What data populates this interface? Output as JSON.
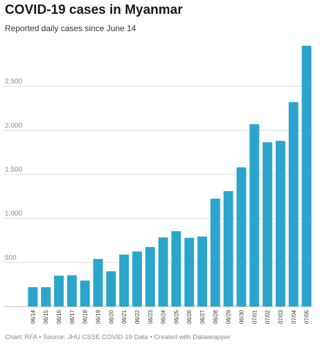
{
  "title": "COVID-19 cases in Myanmar",
  "subtitle": "Reported daily cases since June 14",
  "footer": "Chart: RFA • Source: JHU CSSE COVID-19 Data • Created with Datawrapper",
  "colors": {
    "bar": "#2ba5cc",
    "grid": "#dcdcdc",
    "tick": "#8c8c8c",
    "label": "#333333"
  },
  "chart_data": {
    "type": "bar",
    "title": "COVID-19 cases in Myanmar",
    "subtitle": "Reported daily cases since June 14",
    "xlabel": "",
    "ylabel": "",
    "ylim": [
      0,
      3000
    ],
    "yticks": [
      500,
      1000,
      1500,
      2000,
      2500
    ],
    "ytick_labels": [
      "500",
      "1,000",
      "1,500",
      "2,000",
      "2,500"
    ],
    "grid": true,
    "legend": "none",
    "categories": [
      "06/14",
      "06/15",
      "06/16",
      "06/17",
      "06/18",
      "06/19",
      "06/20",
      "06/21",
      "06/22",
      "06/23",
      "06/24",
      "06/25",
      "06/26",
      "06/27",
      "06/28",
      "06/29",
      "06/30",
      "07/01",
      "07/02",
      "07/03",
      "07/04",
      "07/05"
    ],
    "values": [
      220,
      220,
      350,
      355,
      295,
      540,
      400,
      590,
      625,
      675,
      785,
      855,
      780,
      795,
      1225,
      1310,
      1580,
      2070,
      1865,
      1880,
      2320,
      2960
    ]
  }
}
